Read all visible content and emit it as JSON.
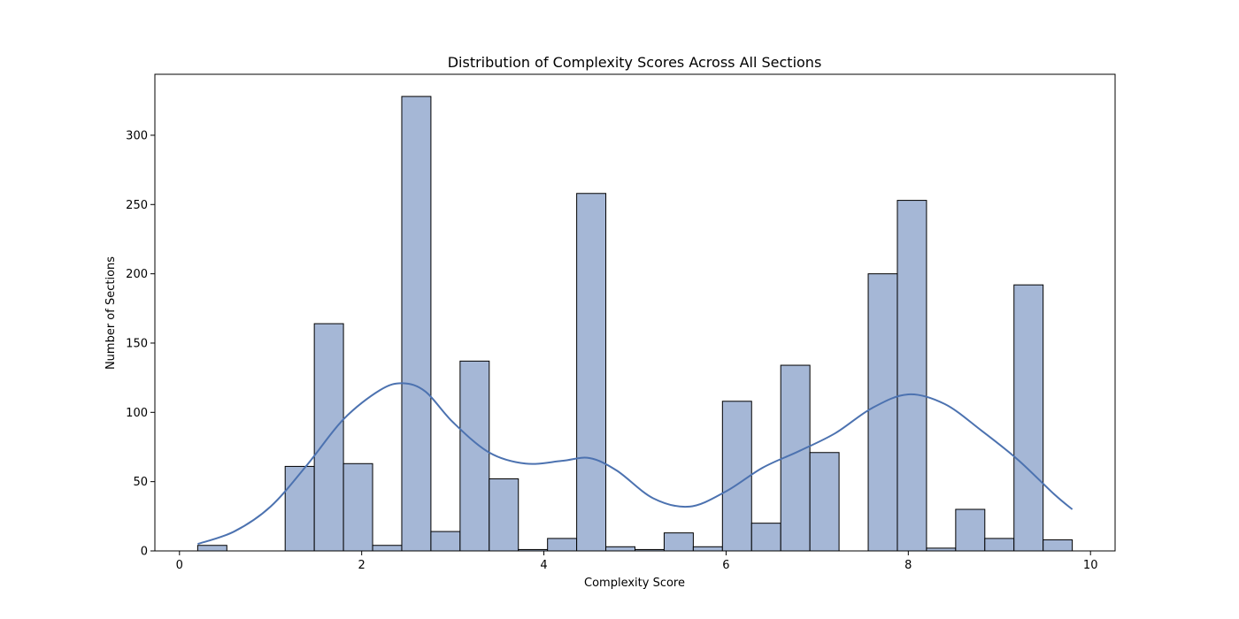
{
  "chart_data": {
    "type": "bar",
    "title": "Distribution of Complexity Scores Across All Sections",
    "xlabel": "Complexity Score",
    "ylabel": "Number of Sections",
    "xlim": [
      -0.27,
      10.27
    ],
    "ylim": [
      0,
      344
    ],
    "xticks": [
      0,
      2,
      4,
      6,
      8,
      10
    ],
    "yticks": [
      0,
      50,
      100,
      150,
      200,
      250,
      300
    ],
    "grid": false,
    "bar_color": "#a5b7d6",
    "bar_edge_color": "#000000",
    "kde_color": "#4c72b0",
    "bins": [
      {
        "x0": 0.2,
        "x1": 0.52,
        "value": 4
      },
      {
        "x0": 0.52,
        "x1": 0.84,
        "value": 0
      },
      {
        "x0": 0.84,
        "x1": 1.16,
        "value": 0
      },
      {
        "x0": 1.16,
        "x1": 1.48,
        "value": 61
      },
      {
        "x0": 1.48,
        "x1": 1.8,
        "value": 164
      },
      {
        "x0": 1.8,
        "x1": 2.12,
        "value": 63
      },
      {
        "x0": 2.12,
        "x1": 2.44,
        "value": 4
      },
      {
        "x0": 2.44,
        "x1": 2.76,
        "value": 328
      },
      {
        "x0": 2.76,
        "x1": 3.08,
        "value": 14
      },
      {
        "x0": 3.08,
        "x1": 3.4,
        "value": 137
      },
      {
        "x0": 3.4,
        "x1": 3.72,
        "value": 52
      },
      {
        "x0": 3.72,
        "x1": 4.04,
        "value": 1
      },
      {
        "x0": 4.04,
        "x1": 4.36,
        "value": 9
      },
      {
        "x0": 4.36,
        "x1": 4.68,
        "value": 258
      },
      {
        "x0": 4.68,
        "x1": 5.0,
        "value": 3
      },
      {
        "x0": 5.0,
        "x1": 5.32,
        "value": 1
      },
      {
        "x0": 5.32,
        "x1": 5.64,
        "value": 13
      },
      {
        "x0": 5.64,
        "x1": 5.96,
        "value": 3
      },
      {
        "x0": 5.96,
        "x1": 6.28,
        "value": 108
      },
      {
        "x0": 6.28,
        "x1": 6.6,
        "value": 20
      },
      {
        "x0": 6.6,
        "x1": 6.92,
        "value": 134
      },
      {
        "x0": 6.92,
        "x1": 7.24,
        "value": 71
      },
      {
        "x0": 7.24,
        "x1": 7.56,
        "value": 0
      },
      {
        "x0": 7.56,
        "x1": 7.88,
        "value": 200
      },
      {
        "x0": 7.88,
        "x1": 8.2,
        "value": 253
      },
      {
        "x0": 8.2,
        "x1": 8.52,
        "value": 2
      },
      {
        "x0": 8.52,
        "x1": 8.84,
        "value": 30
      },
      {
        "x0": 8.84,
        "x1": 9.16,
        "value": 9
      },
      {
        "x0": 9.16,
        "x1": 9.48,
        "value": 192
      },
      {
        "x0": 9.48,
        "x1": 9.8,
        "value": 8
      }
    ],
    "kde": {
      "x": [
        0.2,
        0.6,
        1.0,
        1.4,
        1.8,
        2.2,
        2.45,
        2.7,
        3.0,
        3.4,
        3.8,
        4.2,
        4.5,
        4.8,
        5.2,
        5.6,
        6.0,
        6.4,
        6.8,
        7.2,
        7.6,
        8.0,
        8.4,
        8.8,
        9.2,
        9.6,
        9.8
      ],
      "y": [
        5,
        14,
        32,
        62,
        95,
        116,
        121,
        115,
        93,
        71,
        63,
        65,
        67,
        58,
        38,
        32,
        43,
        60,
        72,
        85,
        103,
        113,
        106,
        87,
        66,
        41,
        30
      ]
    }
  }
}
